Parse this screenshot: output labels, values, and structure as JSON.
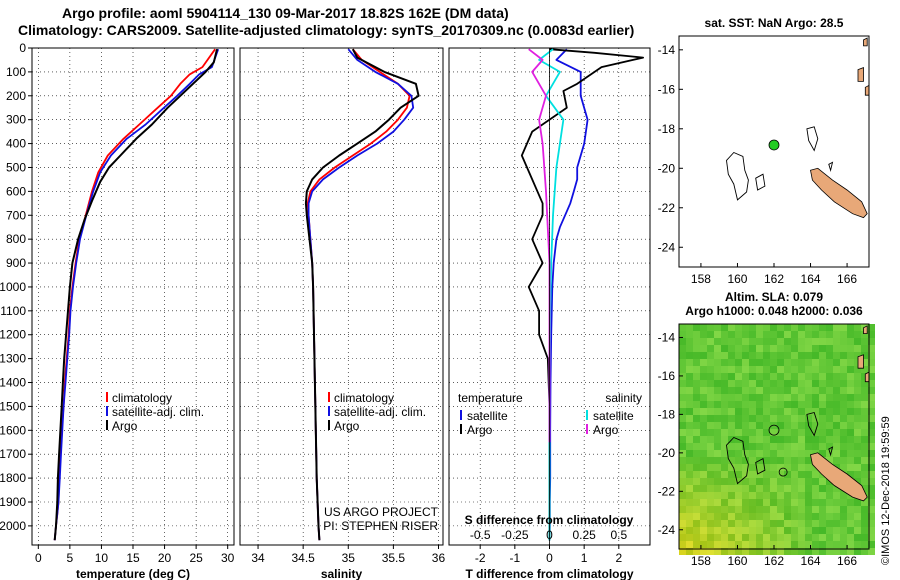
{
  "header": {
    "line1": "Argo profile: aoml 5904114_130 09-Mar-2017 18.82S 162E (DM data)",
    "line2": "Climatology: CARS2009. Satellite-adjusted climatology: synTS_20170309.nc (0.0083d earlier)"
  },
  "side_label": "©IMOS 12-Dec-2018 19:59:59",
  "colors": {
    "climatology": "#ff0000",
    "satellite": "#1010e0",
    "argo": "#000000",
    "sat_salinity": "#00e0e0",
    "argo_salinity": "#e020e0",
    "land": "#e8a878",
    "sla_bg": "#58c838",
    "float_marker": "#22cc22"
  },
  "chart_data": [
    {
      "id": "temperature",
      "type": "line",
      "xlabel": "temperature (deg C)",
      "ylabel": "",
      "xlim": [
        -1,
        31
      ],
      "ylim": [
        2080,
        0
      ],
      "xticks": [
        0,
        5,
        10,
        15,
        20,
        25,
        30
      ],
      "xtick_labels": [
        "0",
        "5",
        "10",
        "15",
        "20",
        "25",
        "30"
      ],
      "yticks": [
        0,
        100,
        200,
        300,
        400,
        500,
        600,
        700,
        800,
        900,
        1000,
        1100,
        1200,
        1300,
        1400,
        1500,
        1600,
        1700,
        1800,
        1900,
        2000
      ],
      "ytick_labels": [
        "0",
        "100",
        "200",
        "300",
        "400",
        "500",
        "600",
        "700",
        "800",
        "900",
        "1000",
        "1100",
        "1200",
        "1300",
        "1400",
        "1500",
        "1600",
        "1700",
        "1800",
        "1900",
        "2000"
      ],
      "legend": [
        "climatology",
        "satellite-adj. clim.",
        "Argo"
      ],
      "series": [
        {
          "name": "climatology",
          "color": "#ff0000",
          "x": [
            28.0,
            26.0,
            24.0,
            22.5,
            21.0,
            18.5,
            16.0,
            13.5,
            11.0,
            9.5,
            8.5,
            7.5,
            6.5,
            5.9,
            5.4,
            5.0,
            4.8,
            4.5,
            4.2,
            4.0,
            3.7,
            3.5,
            3.3,
            3.2,
            3.0,
            2.8,
            2.6
          ],
          "y": [
            5,
            80,
            110,
            150,
            200,
            260,
            320,
            380,
            450,
            520,
            600,
            700,
            800,
            900,
            1000,
            1100,
            1200,
            1300,
            1400,
            1500,
            1600,
            1700,
            1800,
            1900,
            1950,
            2000,
            2060
          ]
        },
        {
          "name": "satellite-adj. clim.",
          "color": "#1010e0",
          "x": [
            28.5,
            27.5,
            25.5,
            24.0,
            22.0,
            19.5,
            17.0,
            14.0,
            11.5,
            9.8,
            8.7,
            7.6,
            6.6,
            6.0,
            5.5,
            5.1,
            4.9,
            4.6,
            4.3,
            4.0,
            3.8,
            3.6,
            3.4,
            3.2,
            3.0,
            2.8,
            2.6
          ],
          "y": [
            5,
            80,
            110,
            150,
            200,
            260,
            320,
            380,
            450,
            520,
            600,
            700,
            800,
            900,
            1000,
            1100,
            1200,
            1300,
            1400,
            1500,
            1600,
            1700,
            1800,
            1900,
            1950,
            2000,
            2060
          ]
        },
        {
          "name": "Argo",
          "color": "#000000",
          "x": [
            28.3,
            27.8,
            26.5,
            24.5,
            22.5,
            20.5,
            18.0,
            15.5,
            13.0,
            11.2,
            9.8,
            8.5,
            7.3,
            6.3,
            5.4,
            5.0,
            4.7,
            4.4,
            4.1,
            3.9,
            3.7,
            3.5,
            3.3,
            3.1,
            3.0,
            2.8,
            2.6
          ],
          "y": [
            5,
            60,
            100,
            150,
            200,
            250,
            320,
            380,
            450,
            500,
            560,
            640,
            720,
            800,
            900,
            1000,
            1100,
            1200,
            1300,
            1400,
            1500,
            1600,
            1700,
            1800,
            1900,
            2000,
            2060
          ]
        }
      ]
    },
    {
      "id": "salinity",
      "type": "line",
      "xlabel": "salinity",
      "ylabel": "",
      "xlim": [
        33.8,
        36.05
      ],
      "ylim": [
        2080,
        0
      ],
      "xticks": [
        34,
        34.5,
        35,
        35.5,
        36
      ],
      "xtick_labels": [
        "34",
        "34.5",
        "35",
        "35.5",
        "36"
      ],
      "legend": [
        "climatology",
        "satellite-adj. clim.",
        "Argo"
      ],
      "annotation": [
        "US ARGO PROJECT",
        "PI: STEPHEN RISER"
      ],
      "series": [
        {
          "name": "climatology",
          "color": "#ff0000",
          "x": [
            35.05,
            35.15,
            35.35,
            35.55,
            35.68,
            35.65,
            35.55,
            35.42,
            35.25,
            35.05,
            34.85,
            34.68,
            34.58,
            34.55,
            34.56,
            34.58,
            34.6,
            34.61,
            34.62,
            34.63,
            34.64,
            34.65,
            34.66,
            34.67,
            34.68
          ],
          "y": [
            5,
            50,
            100,
            150,
            200,
            250,
            300,
            350,
            400,
            450,
            500,
            550,
            600,
            650,
            700,
            800,
            900,
            1000,
            1200,
            1400,
            1600,
            1800,
            1900,
            2000,
            2060
          ]
        },
        {
          "name": "satellite-adj. clim.",
          "color": "#1010e0",
          "x": [
            35.0,
            35.1,
            35.3,
            35.55,
            35.7,
            35.72,
            35.62,
            35.5,
            35.32,
            35.1,
            34.9,
            34.72,
            34.6,
            34.56,
            34.56,
            34.58,
            34.6,
            34.61,
            34.62,
            34.63,
            34.64,
            34.65,
            34.66,
            34.67,
            34.68
          ],
          "y": [
            5,
            50,
            100,
            150,
            200,
            250,
            300,
            350,
            400,
            450,
            500,
            550,
            600,
            650,
            700,
            800,
            900,
            1000,
            1200,
            1400,
            1600,
            1800,
            1900,
            2000,
            2060
          ]
        },
        {
          "name": "Argo",
          "color": "#000000",
          "x": [
            35.05,
            35.1,
            35.4,
            35.75,
            35.78,
            35.58,
            35.45,
            35.3,
            35.1,
            34.9,
            34.72,
            34.6,
            34.54,
            34.53,
            34.54,
            34.57,
            34.6,
            34.61,
            34.62,
            34.63,
            34.64,
            34.65,
            34.66,
            34.67,
            34.68
          ],
          "y": [
            5,
            40,
            100,
            150,
            200,
            250,
            300,
            350,
            400,
            450,
            500,
            550,
            600,
            650,
            700,
            800,
            900,
            1000,
            1200,
            1400,
            1600,
            1800,
            1900,
            2000,
            2060
          ]
        }
      ]
    },
    {
      "id": "difference",
      "type": "line",
      "xlabel": "T difference from climatology",
      "xlim": [
        -2.9,
        2.9
      ],
      "ylim": [
        2080,
        0
      ],
      "xticks": [
        -2,
        -1,
        0,
        1,
        2
      ],
      "xtick_labels": [
        "-2",
        "-1",
        "0",
        "1",
        "2"
      ],
      "top_xlabel": "S difference from climatology",
      "top_xticks": [
        -2,
        -1,
        0,
        1,
        2
      ],
      "top_xtick_labels": [
        "-0.5",
        "-0.25",
        "0",
        "0.25",
        "0.5"
      ],
      "legend_left_title": "temperature",
      "legend_right_title": "salinity",
      "legend_left": [
        "satellite",
        "Argo"
      ],
      "legend_right": [
        "satellite",
        "Argo"
      ],
      "series": [
        {
          "name": "temperature satellite",
          "color": "#1010e0",
          "x": [
            0.5,
            0.2,
            0.9,
            0.9,
            1.1,
            1.0,
            0.8,
            0.8,
            0.7,
            0.6,
            0.45,
            0.3,
            0.2,
            0.12,
            0.08,
            0.05,
            0.03,
            0.02,
            0.02,
            0.01,
            0.01,
            0.0
          ],
          "y": [
            5,
            50,
            100,
            200,
            300,
            400,
            500,
            550,
            600,
            650,
            700,
            750,
            800,
            900,
            1000,
            1200,
            1400,
            1600,
            1800,
            1900,
            2000,
            2060
          ]
        },
        {
          "name": "temperature Argo",
          "color": "#000000",
          "x": [
            0.0,
            1.3,
            2.7,
            1.5,
            0.8,
            0.4,
            0.5,
            -0.5,
            -0.8,
            -0.5,
            -0.2,
            -0.2,
            -0.5,
            -0.2,
            -0.6,
            -0.3,
            -0.3,
            -0.05,
            0.0,
            0.0,
            0.0
          ],
          "y": [
            5,
            20,
            40,
            80,
            150,
            180,
            250,
            350,
            450,
            550,
            650,
            700,
            800,
            900,
            1000,
            1100,
            1200,
            1300,
            1500,
            1800,
            2060
          ]
        },
        {
          "name": "salinity satellite",
          "color": "#00e0e0",
          "x": [
            0.1,
            -0.3,
            0.3,
            -0.1,
            0.4,
            0.2,
            0.1,
            0.05,
            0.02,
            0.0,
            0.0,
            0.0
          ],
          "y": [
            5,
            50,
            100,
            200,
            300,
            500,
            700,
            900,
            1100,
            1400,
            1800,
            2060
          ]
        },
        {
          "name": "salinity Argo",
          "color": "#e020e0",
          "x": [
            -0.6,
            -0.2,
            -0.5,
            -0.1,
            -0.3,
            -0.2,
            -0.1,
            0.0,
            0.0,
            0.0
          ],
          "y": [
            5,
            50,
            100,
            200,
            300,
            400,
            600,
            900,
            1300,
            1650
          ]
        }
      ]
    },
    {
      "id": "sst_map",
      "type": "scatter",
      "title": "sat. SST: NaN Argo: 28.5",
      "xlim": [
        156.8,
        167.2
      ],
      "ylim": [
        -25,
        -13.3
      ],
      "xticks": [
        158,
        160,
        162,
        164,
        166
      ],
      "xtick_labels": [
        "158",
        "160",
        "162",
        "164",
        "166"
      ],
      "yticks": [
        -14,
        -16,
        -18,
        -20,
        -22,
        -24
      ],
      "ytick_labels": [
        "-14",
        "-16",
        "-18",
        "-20",
        "-22",
        "-24"
      ],
      "points": [
        {
          "lon": 162.0,
          "lat": -18.82
        }
      ]
    },
    {
      "id": "sla_map",
      "type": "heatmap",
      "title1": "Altim. SLA: 0.079",
      "title2": "Argo h1000: 0.048 h2000: 0.036",
      "xlim": [
        156.8,
        167.2
      ],
      "ylim": [
        -25,
        -13.3
      ],
      "xticks": [
        158,
        160,
        162,
        164,
        166
      ],
      "xtick_labels": [
        "158",
        "160",
        "162",
        "164",
        "166"
      ],
      "yticks": [
        -14,
        -16,
        -18,
        -20,
        -22,
        -24
      ],
      "ytick_labels": [
        "-14",
        "-16",
        "-18",
        "-20",
        "-22",
        "-24"
      ],
      "points": [
        {
          "lon": 162.0,
          "lat": -18.82
        },
        {
          "lon": 162.5,
          "lat": -21.0
        }
      ]
    }
  ]
}
